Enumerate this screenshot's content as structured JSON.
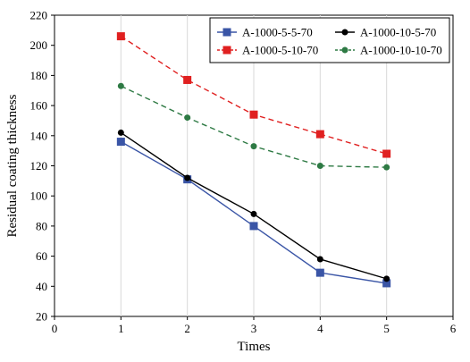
{
  "chart_data": {
    "type": "line",
    "title": "",
    "xlabel": "Times",
    "ylabel": "Residual coating thickness",
    "xlim": [
      0,
      6
    ],
    "ylim": [
      20,
      220
    ],
    "xticks": [
      0,
      1,
      2,
      3,
      4,
      5,
      6
    ],
    "yticks": [
      20,
      40,
      60,
      80,
      100,
      120,
      140,
      160,
      180,
      200,
      220
    ],
    "grid": "vertical",
    "legend_position": "top-right",
    "series": [
      {
        "name": "A-1000-5-5-70",
        "color": "#3a55a6",
        "line": "solid",
        "marker": "square",
        "x": [
          1,
          2,
          3,
          4,
          5
        ],
        "y": [
          136,
          111,
          80,
          49,
          42
        ]
      },
      {
        "name": "A-1000-10-5-70",
        "color": "#000000",
        "line": "solid",
        "marker": "circle",
        "x": [
          1,
          2,
          3,
          4,
          5
        ],
        "y": [
          142,
          112,
          88,
          58,
          45
        ]
      },
      {
        "name": "A-1000-5-10-70",
        "color": "#e02020",
        "line": "dashed",
        "marker": "square",
        "x": [
          1,
          2,
          3,
          4,
          5
        ],
        "y": [
          206,
          177,
          154,
          141,
          128
        ]
      },
      {
        "name": "A-1000-10-10-70",
        "color": "#2e7a44",
        "line": "dashed",
        "marker": "circle",
        "x": [
          1,
          2,
          3,
          4,
          5
        ],
        "y": [
          173,
          152,
          133,
          120,
          119
        ]
      }
    ]
  }
}
